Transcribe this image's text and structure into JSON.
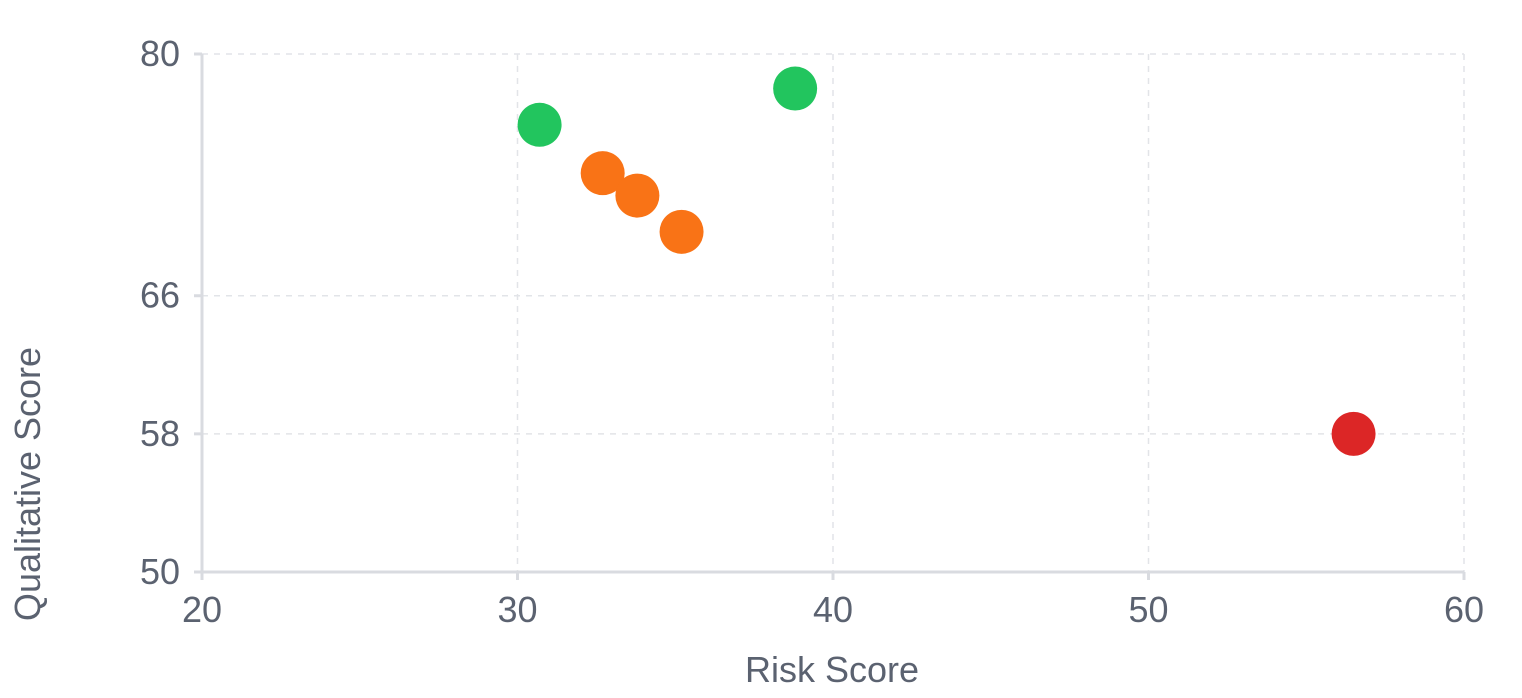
{
  "chart_data": {
    "type": "scatter",
    "xlabel": "Risk Score",
    "ylabel": "Qualitative Score",
    "xlim": [
      20,
      60
    ],
    "ylim": [
      50,
      80
    ],
    "x_ticks": [
      20,
      30,
      40,
      50,
      60
    ],
    "y_ticks": [
      50,
      58,
      66,
      80
    ],
    "grid": true,
    "points": [
      {
        "x": 30.7,
        "y": 75.9,
        "color": "#22c55e"
      },
      {
        "x": 38.8,
        "y": 78.0,
        "color": "#22c55e"
      },
      {
        "x": 32.7,
        "y": 73.1,
        "color": "#f97316"
      },
      {
        "x": 33.8,
        "y": 71.8,
        "color": "#f97316"
      },
      {
        "x": 35.2,
        "y": 69.7,
        "color": "#f97316"
      },
      {
        "x": 56.5,
        "y": 58.0,
        "color": "#dc2626"
      }
    ]
  }
}
